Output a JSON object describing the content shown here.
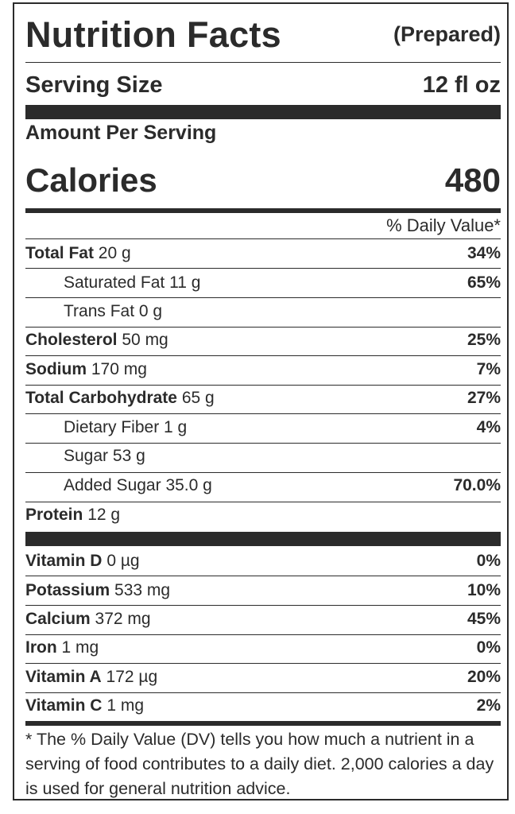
{
  "label": {
    "title": "Nutrition Facts",
    "title_note": "(Prepared)",
    "serving_size_label": "Serving Size",
    "serving_size_value": "12 fl oz",
    "amount_per_serving": "Amount Per Serving",
    "calories_label": "Calories",
    "calories_value": "480",
    "dv_header": "% Daily Value*",
    "nutrients": [
      {
        "name": "Total Fat",
        "amount": "20 g",
        "dv": "34%"
      },
      {
        "name": "Saturated Fat",
        "amount": "11 g",
        "dv": "65%"
      },
      {
        "name": "Trans Fat",
        "amount": "0 g",
        "dv": ""
      },
      {
        "name": "Cholesterol",
        "amount": "50 mg",
        "dv": "25%"
      },
      {
        "name": "Sodium",
        "amount": "170 mg",
        "dv": "7%"
      },
      {
        "name": "Total Carbohydrate",
        "amount": "65 g",
        "dv": "27%"
      },
      {
        "name": "Dietary Fiber",
        "amount": "1 g",
        "dv": "4%"
      },
      {
        "name": "Sugar",
        "amount": "53 g",
        "dv": ""
      },
      {
        "name": "Added Sugar",
        "amount": "35.0 g",
        "dv": "70.0%"
      },
      {
        "name": "Protein",
        "amount": "12 g",
        "dv": ""
      }
    ],
    "vitamins": [
      {
        "name": "Vitamin D",
        "amount": "0 µg",
        "dv": "0%"
      },
      {
        "name": "Potassium",
        "amount": "533 mg",
        "dv": "10%"
      },
      {
        "name": "Calcium",
        "amount": "372 mg",
        "dv": "45%"
      },
      {
        "name": "Iron",
        "amount": "1 mg",
        "dv": "0%"
      },
      {
        "name": "Vitamin A",
        "amount": "172 µg",
        "dv": "20%"
      },
      {
        "name": "Vitamin C",
        "amount": "1 mg",
        "dv": "2%"
      }
    ],
    "footnote": "* The % Daily Value (DV) tells you how much a nutrient in a serving of food contributes to a daily diet. 2,000 calories a day is used for general nutrition advice."
  }
}
